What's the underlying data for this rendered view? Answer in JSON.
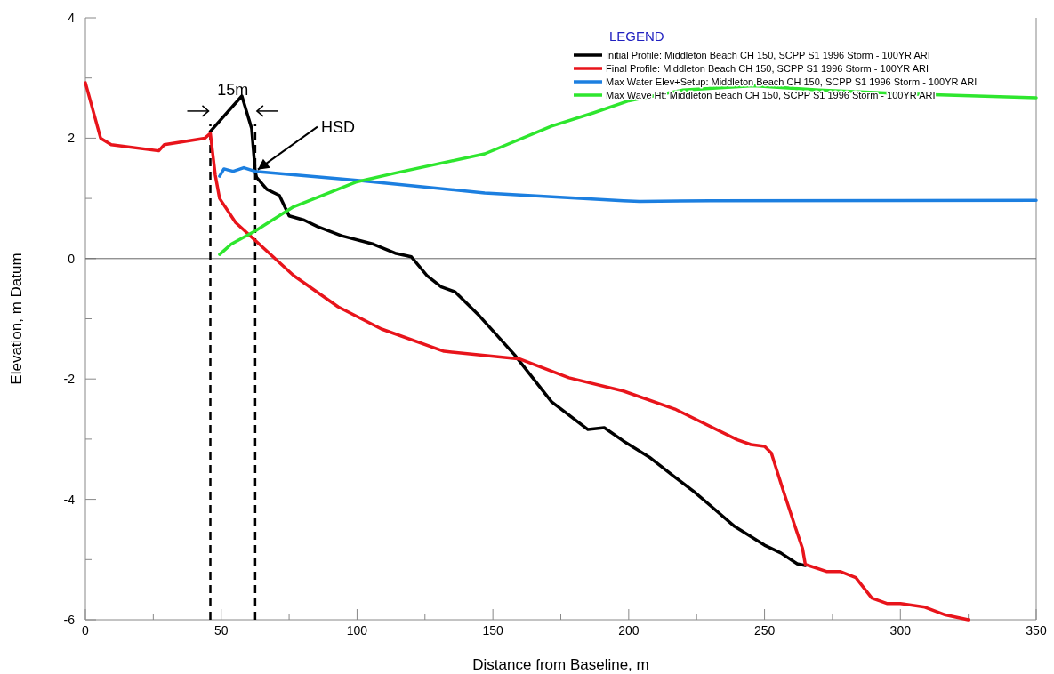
{
  "chart_data": {
    "type": "line",
    "xlabel": "Distance from Baseline, m",
    "ylabel": "Elevation, m Datum",
    "legend_title": "LEGEND",
    "legend": "top right",
    "grid": false,
    "line_style": "solid",
    "marker": "none",
    "xlim": [
      0,
      350
    ],
    "xticks": [
      0,
      {
        "value": 25,
        "label": null
      },
      50,
      {
        "value": 75,
        "label": null
      },
      100,
      {
        "value": 125,
        "label": null
      },
      150,
      {
        "value": 175,
        "label": null
      },
      200,
      {
        "value": 225,
        "label": null
      },
      250,
      {
        "value": 275,
        "label": null
      },
      300,
      {
        "value": 325,
        "label": null
      },
      350
    ],
    "ylim": [
      -6,
      4
    ],
    "yticks": [
      -6,
      {
        "value": -5,
        "label": null
      },
      -4,
      {
        "value": -3,
        "label": null
      },
      -2,
      {
        "value": -1,
        "label": null
      },
      0,
      {
        "value": 1,
        "label": null
      },
      2,
      {
        "value": 3,
        "label": null
      },
      4
    ],
    "series": [
      {
        "name": "Initial Profile: Middleton Beach CH 150, SCPP S1 1996 Storm - 100YR ARI",
        "color": "#000000",
        "x": [
          46,
          57.6,
          61.2,
          62.5,
          63,
          66.8,
          71.4,
          75,
          80.5,
          85.5,
          94.3,
          106,
          114,
          120,
          125.7,
          131,
          136,
          145,
          158,
          171.6,
          185,
          191,
          198,
          207.6,
          217,
          224,
          230.5,
          239,
          250,
          256,
          262,
          265
        ],
        "values": [
          2.11,
          2.7,
          2.16,
          1.45,
          1.35,
          1.15,
          1.05,
          0.71,
          0.64,
          0.53,
          0.38,
          0.24,
          0.09,
          0.03,
          -0.28,
          -0.47,
          -0.55,
          -0.95,
          -1.6,
          -2.38,
          -2.84,
          -2.81,
          -3.03,
          -3.3,
          -3.63,
          -3.87,
          -4.12,
          -4.45,
          -4.76,
          -4.89,
          -5.07,
          -5.1
        ]
      },
      {
        "name": "Final Profile: Middleton Beach CH 150, SCPP S1 1996 Storm - 100YR ARI",
        "color": "#e8141b",
        "x": [
          0,
          5.6,
          9.5,
          27,
          29,
          44,
          46,
          47.8,
          49.4,
          55.3,
          64,
          76.6,
          93,
          109,
          132,
          160,
          178,
          198,
          217,
          240,
          245,
          250,
          252.5,
          256.7,
          261,
          264,
          265,
          273,
          278,
          283.6,
          289.5,
          295,
          300,
          309,
          316.6,
          325
        ],
        "values": [
          2.92,
          2.0,
          1.89,
          1.79,
          1.89,
          2.0,
          2.08,
          1.39,
          1.0,
          0.6,
          0.24,
          -0.28,
          -0.8,
          -1.17,
          -1.54,
          -1.67,
          -1.98,
          -2.2,
          -2.5,
          -3.01,
          -3.09,
          -3.12,
          -3.23,
          -3.83,
          -4.42,
          -4.82,
          -5.08,
          -5.2,
          -5.2,
          -5.3,
          -5.64,
          -5.73,
          -5.73,
          -5.79,
          -5.92,
          -6.0
        ]
      },
      {
        "name": "Max Water Elev+Setup: Middleton Beach CH 150, SCPP S1 1996 Storm - 100YR ARI",
        "color": "#1c7fe0",
        "x": [
          49.4,
          51,
          54.4,
          58.3,
          62.5,
          100,
          147,
          198,
          204,
          230,
          350
        ],
        "values": [
          1.37,
          1.49,
          1.45,
          1.51,
          1.45,
          1.3,
          1.09,
          0.96,
          0.95,
          0.96,
          0.97
        ]
      },
      {
        "name": "Max Wave Ht: Middleton Beach CH 150, SCPP S1 1996 Storm - 100YR ARI",
        "color": "#2ee62e",
        "x": [
          49.4,
          53.7,
          62.5,
          76.6,
          99.5,
          114,
          147,
          171.6,
          187,
          200,
          220,
          246,
          270,
          300,
          350
        ],
        "values": [
          0.07,
          0.24,
          0.46,
          0.86,
          1.27,
          1.42,
          1.74,
          2.2,
          2.42,
          2.62,
          2.8,
          2.87,
          2.8,
          2.74,
          2.67
        ]
      }
    ],
    "ref_lines": [
      {
        "axis": "y",
        "value": 0,
        "color": "#666666",
        "line_style": "solid"
      },
      {
        "axis": "x",
        "value": 46,
        "color": "#000000",
        "line_style": "dashed"
      },
      {
        "axis": "x",
        "value": 62.5,
        "color": "#000000",
        "line_style": "dashed"
      }
    ],
    "annotations": [
      {
        "text": "15m",
        "x": 54.25,
        "y": 2.45
      },
      {
        "text": "HSD",
        "x": 62.5,
        "y": 1.45
      }
    ]
  }
}
